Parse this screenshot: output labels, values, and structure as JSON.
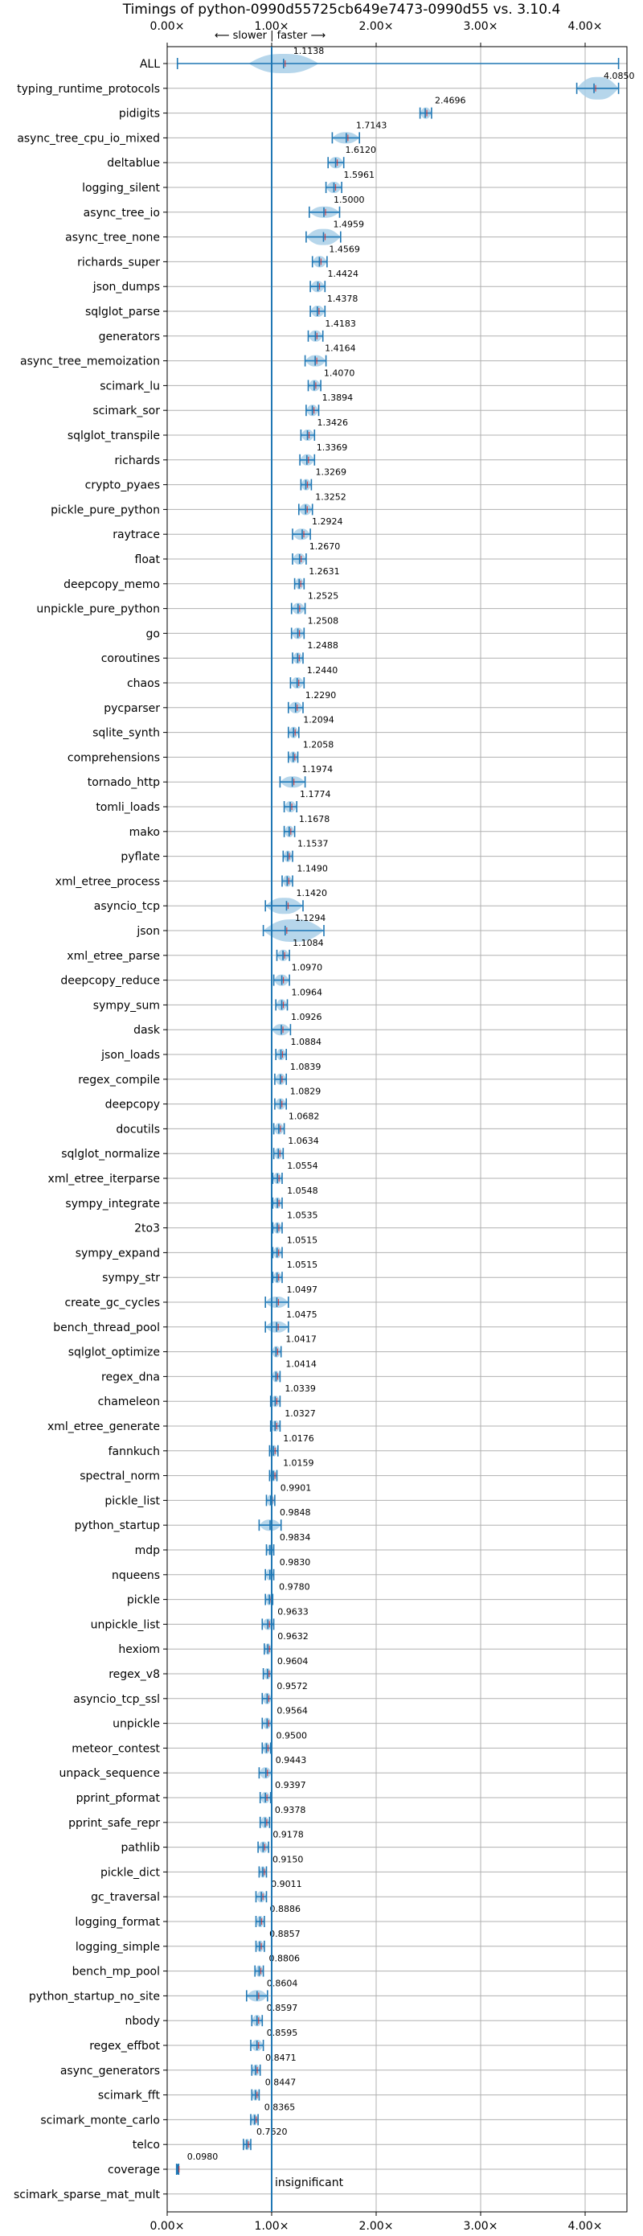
{
  "chart_data": {
    "type": "violin",
    "title": "Timings of python-0990d55725cb649e7473-0990d55 vs. 3.10.4",
    "direction_annotation": "⟵ slower | faster ⟶",
    "reference_line_label": "insignificant",
    "reference_value": 1.0,
    "xlim": [
      0,
      4.4
    ],
    "x_ticks": [
      0,
      1,
      2,
      3,
      4
    ],
    "x_tick_labels": [
      "0.00×",
      "1.00×",
      "2.00×",
      "3.00×",
      "4.00×"
    ],
    "grid": true,
    "colors": {
      "body": "#a9cfe8",
      "line": "#1f77b4",
      "mean": "#d62728"
    },
    "benchmarks": [
      {
        "name": "ALL",
        "value": 1.1138,
        "label": "1.1138",
        "lo": 0.098,
        "hi": 4.32
      },
      {
        "name": "typing_runtime_protocols",
        "value": 4.085,
        "label": "4.0850",
        "lo": 3.92,
        "hi": 4.32
      },
      {
        "name": "pidigits",
        "value": 2.4696,
        "label": "2.4696",
        "lo": 2.42,
        "hi": 2.53
      },
      {
        "name": "async_tree_cpu_io_mixed",
        "value": 1.7143,
        "label": "1.7143",
        "lo": 1.58,
        "hi": 1.84
      },
      {
        "name": "deltablue",
        "value": 1.612,
        "label": "1.6120",
        "lo": 1.54,
        "hi": 1.69
      },
      {
        "name": "logging_silent",
        "value": 1.5961,
        "label": "1.5961",
        "lo": 1.52,
        "hi": 1.67
      },
      {
        "name": "async_tree_io",
        "value": 1.5,
        "label": "1.5000",
        "lo": 1.36,
        "hi": 1.65
      },
      {
        "name": "async_tree_none",
        "value": 1.4959,
        "label": "1.4959",
        "lo": 1.33,
        "hi": 1.66
      },
      {
        "name": "richards_super",
        "value": 1.4569,
        "label": "1.4569",
        "lo": 1.39,
        "hi": 1.53
      },
      {
        "name": "json_dumps",
        "value": 1.4424,
        "label": "1.4424",
        "lo": 1.37,
        "hi": 1.51
      },
      {
        "name": "sqlglot_parse",
        "value": 1.4378,
        "label": "1.4378",
        "lo": 1.37,
        "hi": 1.51
      },
      {
        "name": "generators",
        "value": 1.4183,
        "label": "1.4183",
        "lo": 1.35,
        "hi": 1.49
      },
      {
        "name": "async_tree_memoization",
        "value": 1.4164,
        "label": "1.4164",
        "lo": 1.32,
        "hi": 1.52
      },
      {
        "name": "scimark_lu",
        "value": 1.407,
        "label": "1.4070",
        "lo": 1.35,
        "hi": 1.47
      },
      {
        "name": "scimark_sor",
        "value": 1.3894,
        "label": "1.3894",
        "lo": 1.33,
        "hi": 1.45
      },
      {
        "name": "sqlglot_transpile",
        "value": 1.3426,
        "label": "1.3426",
        "lo": 1.28,
        "hi": 1.41
      },
      {
        "name": "richards",
        "value": 1.3369,
        "label": "1.3369",
        "lo": 1.27,
        "hi": 1.41
      },
      {
        "name": "crypto_pyaes",
        "value": 1.3269,
        "label": "1.3269",
        "lo": 1.28,
        "hi": 1.38
      },
      {
        "name": "pickle_pure_python",
        "value": 1.3252,
        "label": "1.3252",
        "lo": 1.26,
        "hi": 1.39
      },
      {
        "name": "raytrace",
        "value": 1.2924,
        "label": "1.2924",
        "lo": 1.2,
        "hi": 1.37
      },
      {
        "name": "float",
        "value": 1.267,
        "label": "1.2670",
        "lo": 1.2,
        "hi": 1.33
      },
      {
        "name": "deepcopy_memo",
        "value": 1.2631,
        "label": "1.2631",
        "lo": 1.22,
        "hi": 1.31
      },
      {
        "name": "unpickle_pure_python",
        "value": 1.2525,
        "label": "1.2525",
        "lo": 1.19,
        "hi": 1.32
      },
      {
        "name": "go",
        "value": 1.2508,
        "label": "1.2508",
        "lo": 1.19,
        "hi": 1.31
      },
      {
        "name": "coroutines",
        "value": 1.2488,
        "label": "1.2488",
        "lo": 1.2,
        "hi": 1.3
      },
      {
        "name": "chaos",
        "value": 1.244,
        "label": "1.2440",
        "lo": 1.18,
        "hi": 1.31
      },
      {
        "name": "pycparser",
        "value": 1.229,
        "label": "1.2290",
        "lo": 1.16,
        "hi": 1.3
      },
      {
        "name": "sqlite_synth",
        "value": 1.2094,
        "label": "1.2094",
        "lo": 1.16,
        "hi": 1.26
      },
      {
        "name": "comprehensions",
        "value": 1.2058,
        "label": "1.2058",
        "lo": 1.16,
        "hi": 1.25
      },
      {
        "name": "tornado_http",
        "value": 1.1974,
        "label": "1.1974",
        "lo": 1.08,
        "hi": 1.32
      },
      {
        "name": "tomli_loads",
        "value": 1.1774,
        "label": "1.1774",
        "lo": 1.12,
        "hi": 1.24
      },
      {
        "name": "mako",
        "value": 1.1678,
        "label": "1.1678",
        "lo": 1.12,
        "hi": 1.22
      },
      {
        "name": "pyflate",
        "value": 1.1537,
        "label": "1.1537",
        "lo": 1.11,
        "hi": 1.2
      },
      {
        "name": "xml_etree_process",
        "value": 1.149,
        "label": "1.1490",
        "lo": 1.1,
        "hi": 1.2
      },
      {
        "name": "asyncio_tcp",
        "value": 1.142,
        "label": "1.1420",
        "lo": 0.94,
        "hi": 1.3
      },
      {
        "name": "json",
        "value": 1.1294,
        "label": "1.1294",
        "lo": 0.92,
        "hi": 1.5
      },
      {
        "name": "xml_etree_parse",
        "value": 1.1084,
        "label": "1.1084",
        "lo": 1.05,
        "hi": 1.17
      },
      {
        "name": "deepcopy_reduce",
        "value": 1.097,
        "label": "1.0970",
        "lo": 1.02,
        "hi": 1.17
      },
      {
        "name": "sympy_sum",
        "value": 1.0964,
        "label": "1.0964",
        "lo": 1.04,
        "hi": 1.15
      },
      {
        "name": "dask",
        "value": 1.0926,
        "label": "1.0926",
        "lo": 1.0,
        "hi": 1.18
      },
      {
        "name": "json_loads",
        "value": 1.0884,
        "label": "1.0884",
        "lo": 1.04,
        "hi": 1.14
      },
      {
        "name": "regex_compile",
        "value": 1.0839,
        "label": "1.0839",
        "lo": 1.03,
        "hi": 1.14
      },
      {
        "name": "deepcopy",
        "value": 1.0829,
        "label": "1.0829",
        "lo": 1.03,
        "hi": 1.14
      },
      {
        "name": "docutils",
        "value": 1.0682,
        "label": "1.0682",
        "lo": 1.02,
        "hi": 1.12
      },
      {
        "name": "sqlglot_normalize",
        "value": 1.0634,
        "label": "1.0634",
        "lo": 1.02,
        "hi": 1.11
      },
      {
        "name": "xml_etree_iterparse",
        "value": 1.0554,
        "label": "1.0554",
        "lo": 1.01,
        "hi": 1.1
      },
      {
        "name": "sympy_integrate",
        "value": 1.0548,
        "label": "1.0548",
        "lo": 1.01,
        "hi": 1.1
      },
      {
        "name": "2to3",
        "value": 1.0535,
        "label": "1.0535",
        "lo": 1.01,
        "hi": 1.1
      },
      {
        "name": "sympy_expand",
        "value": 1.0515,
        "label": "1.0515",
        "lo": 1.01,
        "hi": 1.1
      },
      {
        "name": "sympy_str",
        "value": 1.0515,
        "label": "1.0515",
        "lo": 1.01,
        "hi": 1.1
      },
      {
        "name": "create_gc_cycles",
        "value": 1.0497,
        "label": "1.0497",
        "lo": 0.94,
        "hi": 1.16
      },
      {
        "name": "bench_thread_pool",
        "value": 1.0475,
        "label": "1.0475",
        "lo": 0.94,
        "hi": 1.16
      },
      {
        "name": "sqlglot_optimize",
        "value": 1.0417,
        "label": "1.0417",
        "lo": 1.0,
        "hi": 1.09
      },
      {
        "name": "regex_dna",
        "value": 1.0414,
        "label": "1.0414",
        "lo": 1.0,
        "hi": 1.08
      },
      {
        "name": "chameleon",
        "value": 1.0339,
        "label": "1.0339",
        "lo": 0.99,
        "hi": 1.08
      },
      {
        "name": "xml_etree_generate",
        "value": 1.0327,
        "label": "1.0327",
        "lo": 0.99,
        "hi": 1.08
      },
      {
        "name": "fannkuch",
        "value": 1.0176,
        "label": "1.0176",
        "lo": 0.98,
        "hi": 1.06
      },
      {
        "name": "spectral_norm",
        "value": 1.0159,
        "label": "1.0159",
        "lo": 0.98,
        "hi": 1.05
      },
      {
        "name": "pickle_list",
        "value": 0.9901,
        "label": "0.9901",
        "lo": 0.95,
        "hi": 1.03
      },
      {
        "name": "python_startup",
        "value": 0.9848,
        "label": "0.9848",
        "lo": 0.88,
        "hi": 1.09
      },
      {
        "name": "mdp",
        "value": 0.9834,
        "label": "0.9834",
        "lo": 0.95,
        "hi": 1.02
      },
      {
        "name": "nqueens",
        "value": 0.983,
        "label": "0.9830",
        "lo": 0.94,
        "hi": 1.02
      },
      {
        "name": "pickle",
        "value": 0.978,
        "label": "0.9780",
        "lo": 0.94,
        "hi": 1.01
      },
      {
        "name": "unpickle_list",
        "value": 0.9633,
        "label": "0.9633",
        "lo": 0.91,
        "hi": 1.02
      },
      {
        "name": "hexiom",
        "value": 0.9632,
        "label": "0.9632",
        "lo": 0.93,
        "hi": 1.0
      },
      {
        "name": "regex_v8",
        "value": 0.9604,
        "label": "0.9604",
        "lo": 0.92,
        "hi": 1.0
      },
      {
        "name": "asyncio_tcp_ssl",
        "value": 0.9572,
        "label": "0.9572",
        "lo": 0.91,
        "hi": 1.0
      },
      {
        "name": "unpickle",
        "value": 0.9564,
        "label": "0.9564",
        "lo": 0.91,
        "hi": 1.0
      },
      {
        "name": "meteor_contest",
        "value": 0.95,
        "label": "0.9500",
        "lo": 0.91,
        "hi": 0.99
      },
      {
        "name": "unpack_sequence",
        "value": 0.9443,
        "label": "0.9443",
        "lo": 0.88,
        "hi": 1.0
      },
      {
        "name": "pprint_pformat",
        "value": 0.9397,
        "label": "0.9397",
        "lo": 0.89,
        "hi": 0.99
      },
      {
        "name": "pprint_safe_repr",
        "value": 0.9378,
        "label": "0.9378",
        "lo": 0.89,
        "hi": 0.98
      },
      {
        "name": "pathlib",
        "value": 0.9178,
        "label": "0.9178",
        "lo": 0.87,
        "hi": 0.97
      },
      {
        "name": "pickle_dict",
        "value": 0.915,
        "label": "0.9150",
        "lo": 0.88,
        "hi": 0.95
      },
      {
        "name": "gc_traversal",
        "value": 0.9011,
        "label": "0.9011",
        "lo": 0.85,
        "hi": 0.95
      },
      {
        "name": "logging_format",
        "value": 0.8886,
        "label": "0.8886",
        "lo": 0.85,
        "hi": 0.93
      },
      {
        "name": "logging_simple",
        "value": 0.8857,
        "label": "0.8857",
        "lo": 0.85,
        "hi": 0.93
      },
      {
        "name": "bench_mp_pool",
        "value": 0.8806,
        "label": "0.8806",
        "lo": 0.84,
        "hi": 0.92
      },
      {
        "name": "python_startup_no_site",
        "value": 0.8604,
        "label": "0.8604",
        "lo": 0.76,
        "hi": 0.96
      },
      {
        "name": "nbody",
        "value": 0.8597,
        "label": "0.8597",
        "lo": 0.81,
        "hi": 0.91
      },
      {
        "name": "regex_effbot",
        "value": 0.8595,
        "label": "0.8595",
        "lo": 0.8,
        "hi": 0.92
      },
      {
        "name": "async_generators",
        "value": 0.8471,
        "label": "0.8471",
        "lo": 0.81,
        "hi": 0.89
      },
      {
        "name": "scimark_fft",
        "value": 0.8447,
        "label": "0.8447",
        "lo": 0.81,
        "hi": 0.88
      },
      {
        "name": "scimark_monte_carlo",
        "value": 0.8365,
        "label": "0.8365",
        "lo": 0.8,
        "hi": 0.87
      },
      {
        "name": "telco",
        "value": 0.762,
        "label": "0.7620",
        "lo": 0.73,
        "hi": 0.8
      },
      {
        "name": "coverage",
        "value": 0.098,
        "label": "0.0980",
        "lo": 0.09,
        "hi": 0.11
      },
      {
        "name": "scimark_sparse_mat_mult",
        "value": null,
        "label": "",
        "lo": null,
        "hi": null
      }
    ]
  }
}
